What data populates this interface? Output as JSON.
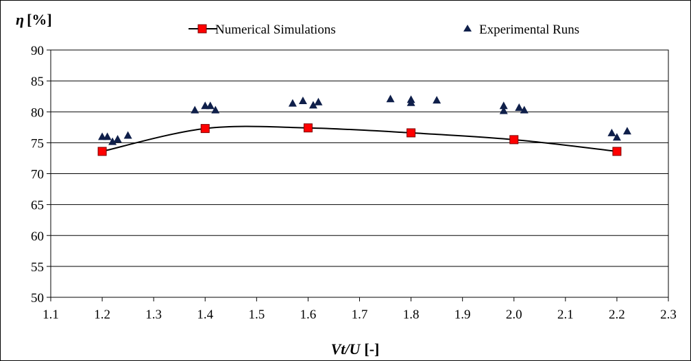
{
  "chart_data": {
    "type": "scatter",
    "y_title_symbol": "η",
    "y_title_unit": "[%]",
    "x_title_var": "Vt/U",
    "x_title_unit": "[-]",
    "xlim": [
      1.1,
      2.3
    ],
    "ylim": [
      50,
      90
    ],
    "x_ticks": [
      "1.1",
      "1.2",
      "1.3",
      "1.4",
      "1.5",
      "1.6",
      "1.7",
      "1.8",
      "1.9",
      "2.0",
      "2.1",
      "2.2",
      "2.3"
    ],
    "y_ticks": [
      "50",
      "55",
      "60",
      "65",
      "70",
      "75",
      "80",
      "85",
      "90"
    ],
    "grid": "horizontal",
    "legend_position": "top",
    "series": [
      {
        "name": "Numerical Simulations",
        "kind": "line-markers",
        "marker": "square",
        "color": "#ff0000",
        "x": [
          1.2,
          1.4,
          1.6,
          1.8,
          2.0,
          2.2
        ],
        "y": [
          73.6,
          77.3,
          77.4,
          76.6,
          75.5,
          73.6
        ]
      },
      {
        "name": "Experimental Runs",
        "kind": "scatter",
        "marker": "triangle",
        "color": "#0f1f4a",
        "x": [
          1.2,
          1.21,
          1.22,
          1.23,
          1.25,
          1.38,
          1.4,
          1.41,
          1.42,
          1.57,
          1.59,
          1.61,
          1.62,
          1.76,
          1.8,
          1.8,
          1.85,
          1.98,
          1.98,
          2.01,
          2.02,
          2.19,
          2.2,
          2.22
        ],
        "y": [
          76.0,
          76.0,
          75.2,
          75.6,
          76.2,
          80.3,
          81.0,
          81.0,
          80.3,
          81.4,
          81.8,
          81.1,
          81.6,
          82.1,
          82.0,
          81.5,
          81.9,
          81.0,
          80.2,
          80.7,
          80.3,
          76.6,
          75.9,
          76.9
        ]
      }
    ]
  }
}
